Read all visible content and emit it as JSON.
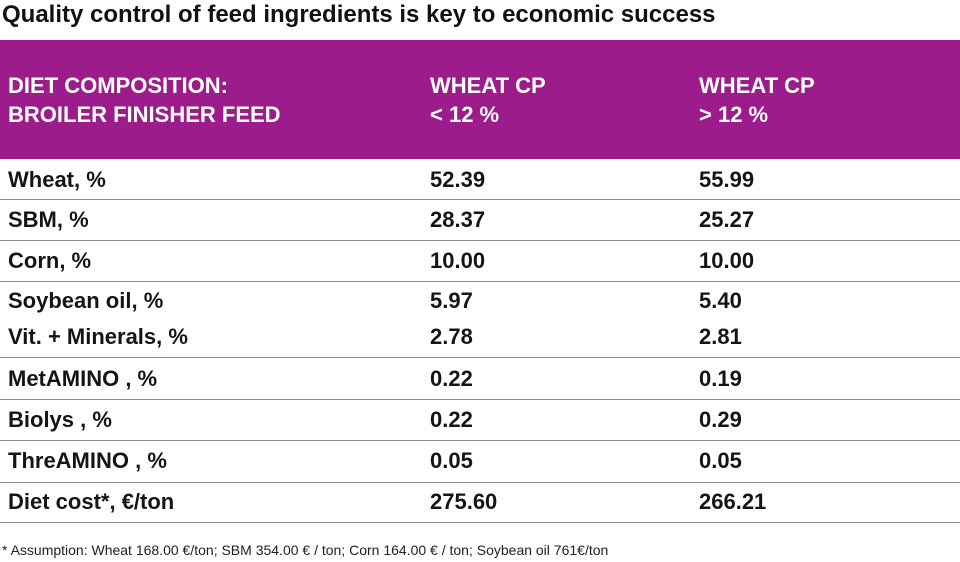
{
  "title": "Quality control of feed ingredients is key to economic success",
  "header": {
    "col1_line1": "DIET COMPOSITION:",
    "col1_line2": "BROILER FINISHER FEED",
    "col2_line1": "WHEAT CP",
    "col2_line2": "< 12 %",
    "col3_line1": "WHEAT CP",
    "col3_line2": "> 12 %"
  },
  "rows": [
    {
      "label": "Wheat, %",
      "low": "52.39",
      "high": "55.99"
    },
    {
      "label": "SBM, %",
      "low": "28.37",
      "high": "25.27"
    },
    {
      "label": "Corn, %",
      "low": "10.00",
      "high": "10.00"
    },
    {
      "label": "Soybean oil, %",
      "low": "5.97",
      "high": "5.40"
    },
    {
      "label": "Vit. + Minerals, %",
      "low": "2.78",
      "high": "2.81"
    },
    {
      "label": "MetAMINO  , %",
      "low": "0.22",
      "high": "0.19"
    },
    {
      "label": "Biolys  , %",
      "low": "0.22",
      "high": "0.29"
    },
    {
      "label": "ThreAMINO  , %",
      "low": "0.05",
      "high": "0.05"
    },
    {
      "label": "Diet cost*, €/ton",
      "low": "275.60",
      "high": "266.21"
    }
  ],
  "footnote": "* Assumption: Wheat 168.00 €/ton; SBM 354.00 € / ton; Corn 164.00 € / ton; Soybean oil 761€/ton",
  "colors": {
    "header_band": "#9b1c8a",
    "header_text": "#ffffff",
    "body_text": "#151515",
    "rule": "#8c8c8c"
  }
}
